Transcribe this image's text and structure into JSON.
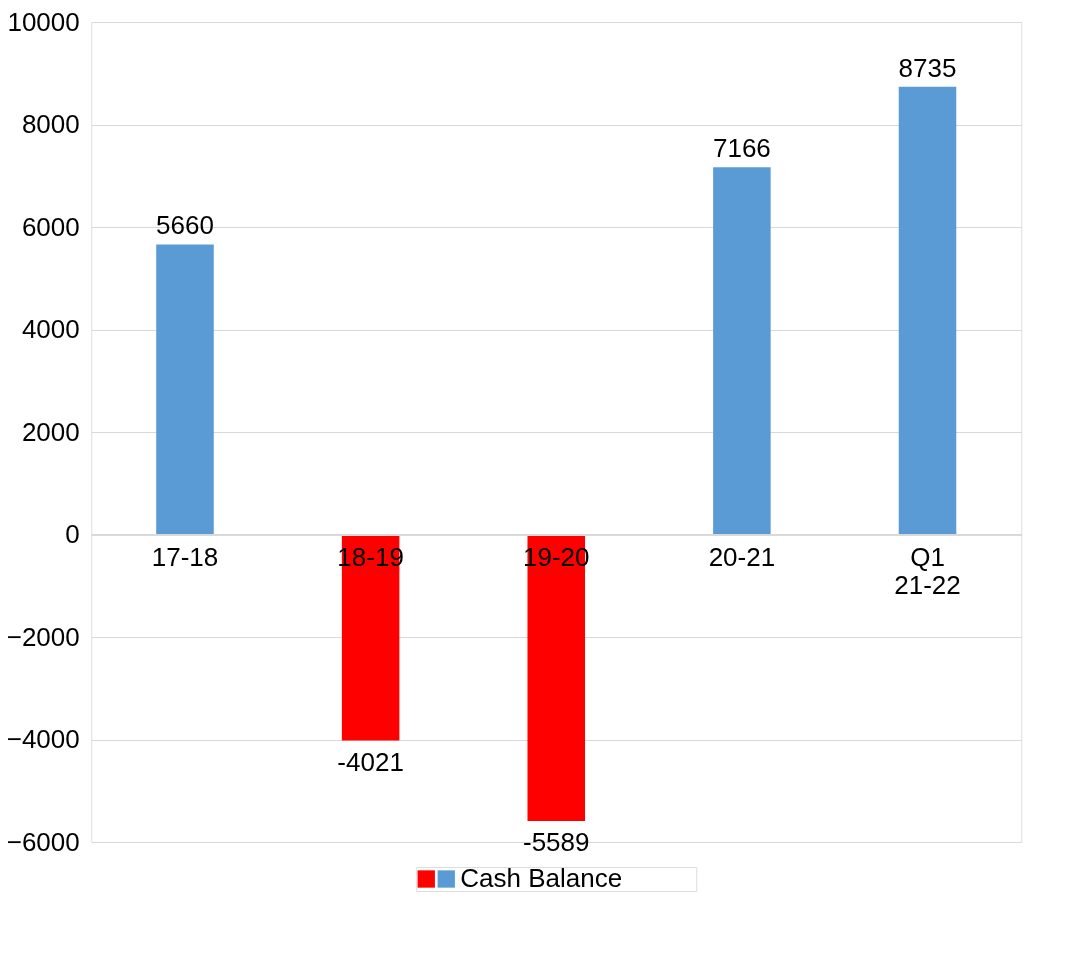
{
  "chart_data": {
    "type": "bar",
    "categories": [
      "17-18",
      "18-19",
      "19-20",
      "20-21",
      "Q1\n21-22"
    ],
    "series": [
      {
        "name": "Cash Balance",
        "colors": [
          "#5b9bd5",
          "#ff0000",
          "#ff0000",
          "#5b9bd5",
          "#5b9bd5"
        ],
        "values": [
          5660,
          -4021,
          -5589,
          7166,
          8735
        ]
      }
    ],
    "ylim": [
      -6000,
      10000
    ],
    "yticks": [
      -6000,
      -4000,
      -2000,
      0,
      2000,
      4000,
      6000,
      8000,
      10000
    ],
    "grid": "y",
    "data_labels": true,
    "legend": "bottom"
  }
}
